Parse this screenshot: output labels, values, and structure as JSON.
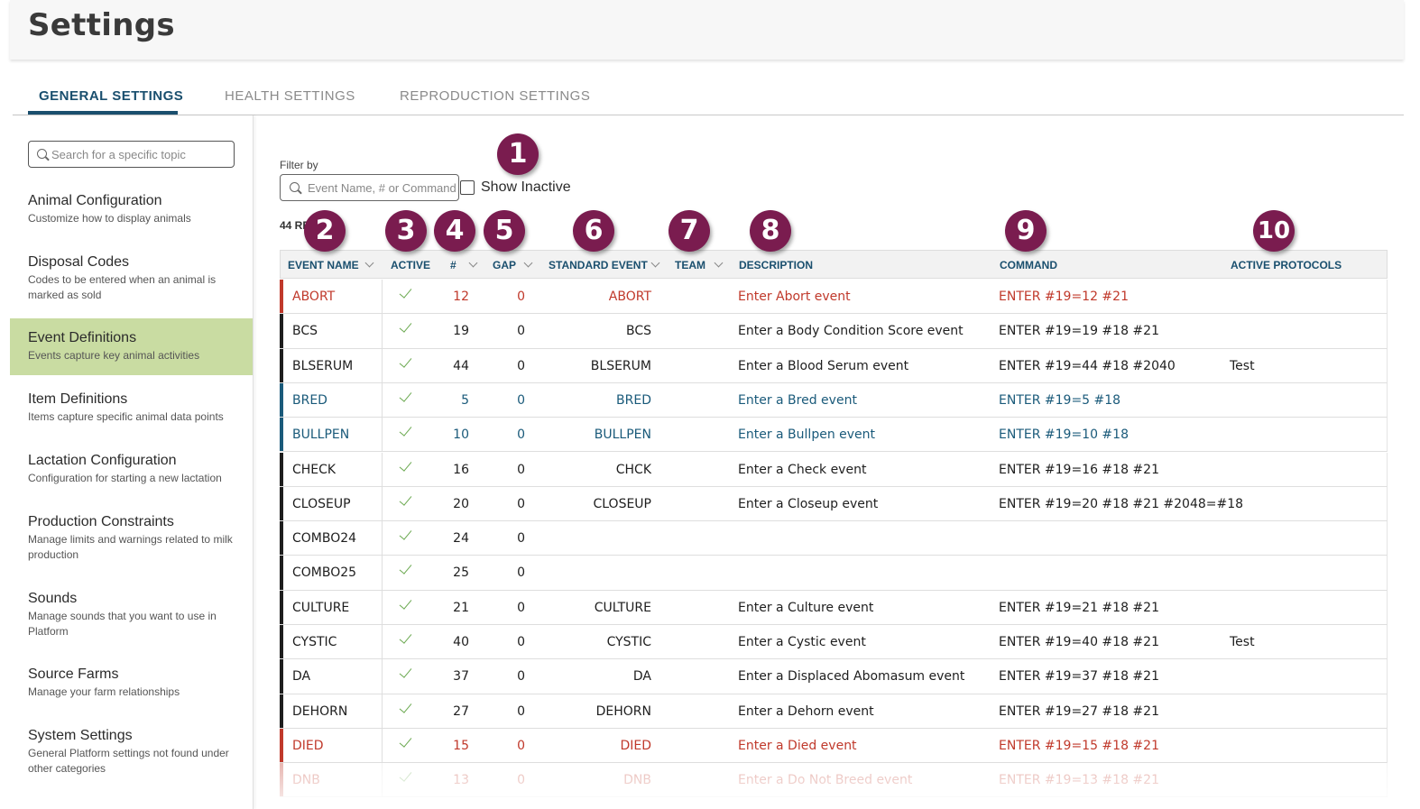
{
  "header": {
    "title": "Settings"
  },
  "tabs": [
    {
      "label": "GENERAL SETTINGS",
      "active": true
    },
    {
      "label": "HEALTH SETTINGS",
      "active": false
    },
    {
      "label": "REPRODUCTION SETTINGS",
      "active": false
    }
  ],
  "sidebar": {
    "search_placeholder": "Search for a specific topic",
    "items": [
      {
        "title": "Animal Configuration",
        "desc": "Customize how to display animals"
      },
      {
        "title": "Disposal Codes",
        "desc": "Codes to be entered when an animal is marked as sold"
      },
      {
        "title": "Event Definitions",
        "desc": "Events capture key animal activities",
        "active": true
      },
      {
        "title": "Item Definitions",
        "desc": "Items capture specific animal data points"
      },
      {
        "title": "Lactation Configuration",
        "desc": "Configuration for starting a new lactation"
      },
      {
        "title": "Production Constraints",
        "desc": "Manage limits and warnings related to milk production"
      },
      {
        "title": "Sounds",
        "desc": "Manage sounds that you want to use in Platform"
      },
      {
        "title": "Source Farms",
        "desc": "Manage your farm relationships"
      },
      {
        "title": "System Settings",
        "desc": "General Platform settings not found under other categories"
      }
    ]
  },
  "filter": {
    "label": "Filter by",
    "placeholder": "Event Name, # or Command",
    "show_inactive_label": "Show Inactive",
    "results_text": "44 RE"
  },
  "columns": {
    "event_name": "EVENT NAME",
    "active": "ACTIVE",
    "num": "#",
    "gap": "GAP",
    "standard_event": "STANDARD EVENT",
    "team": "TEAM",
    "description": "DESCRIPTION",
    "command": "COMMAND",
    "active_protocols": "ACTIVE PROTOCOLS"
  },
  "badges": [
    "1",
    "2",
    "3",
    "4",
    "5",
    "6",
    "7",
    "8",
    "9",
    "10"
  ],
  "colors": {
    "red": "#c0392b",
    "blue": "#1a5a7a",
    "black": "#1e1e1e",
    "badge": "#7a1c4f",
    "accent": "#1a4f6e",
    "active_bg": "#c9dca2",
    "check": "#6aa84f"
  },
  "rows": [
    {
      "name": "ABORT",
      "num": "12",
      "gap": "0",
      "std": "ABORT",
      "desc": "Enter Abort event",
      "cmd": "ENTER #19=12 #21",
      "prot": "",
      "color": "#c0392b"
    },
    {
      "name": "BCS",
      "num": "19",
      "gap": "0",
      "std": "BCS",
      "desc": "Enter a Body Condition Score event",
      "cmd": "ENTER #19=19 #18 #21",
      "prot": "",
      "color": "#1e1e1e"
    },
    {
      "name": "BLSERUM",
      "num": "44",
      "gap": "0",
      "std": "BLSERUM",
      "desc": "Enter a Blood Serum event",
      "cmd": "ENTER #19=44 #18 #2040",
      "prot": "Test",
      "color": "#1e1e1e"
    },
    {
      "name": "BRED",
      "num": "5",
      "gap": "0",
      "std": "BRED",
      "desc": "Enter a Bred event",
      "cmd": "ENTER #19=5 #18",
      "prot": "",
      "color": "#1a5a7a"
    },
    {
      "name": "BULLPEN",
      "num": "10",
      "gap": "0",
      "std": "BULLPEN",
      "desc": "Enter a Bullpen event",
      "cmd": "ENTER #19=10 #18",
      "prot": "",
      "color": "#1a5a7a"
    },
    {
      "name": "CHECK",
      "num": "16",
      "gap": "0",
      "std": "CHCK",
      "desc": "Enter a Check event",
      "cmd": "ENTER #19=16 #18 #21",
      "prot": "",
      "color": "#1e1e1e"
    },
    {
      "name": "CLOSEUP",
      "num": "20",
      "gap": "0",
      "std": "CLOSEUP",
      "desc": "Enter a Closeup event",
      "cmd": "ENTER #19=20 #18 #21 #2048=#18",
      "prot": "",
      "color": "#1e1e1e"
    },
    {
      "name": "COMBO24",
      "num": "24",
      "gap": "0",
      "std": "",
      "desc": "",
      "cmd": "",
      "prot": "",
      "color": "#1e1e1e"
    },
    {
      "name": "COMBO25",
      "num": "25",
      "gap": "0",
      "std": "",
      "desc": "",
      "cmd": "",
      "prot": "",
      "color": "#1e1e1e"
    },
    {
      "name": "CULTURE",
      "num": "21",
      "gap": "0",
      "std": "CULTURE",
      "desc": "Enter a Culture event",
      "cmd": "ENTER #19=21 #18 #21",
      "prot": "",
      "color": "#1e1e1e"
    },
    {
      "name": "CYSTIC",
      "num": "40",
      "gap": "0",
      "std": "CYSTIC",
      "desc": "Enter a Cystic event",
      "cmd": "ENTER #19=40 #18 #21",
      "prot": "Test",
      "color": "#1e1e1e"
    },
    {
      "name": "DA",
      "num": "37",
      "gap": "0",
      "std": "DA",
      "desc": "Enter a Displaced Abomasum event",
      "cmd": "ENTER #19=37 #18 #21",
      "prot": "",
      "color": "#1e1e1e"
    },
    {
      "name": "DEHORN",
      "num": "27",
      "gap": "0",
      "std": "DEHORN",
      "desc": "Enter a Dehorn event",
      "cmd": "ENTER #19=27 #18 #21",
      "prot": "",
      "color": "#1e1e1e"
    },
    {
      "name": "DIED",
      "num": "15",
      "gap": "0",
      "std": "DIED",
      "desc": "Enter a Died event",
      "cmd": "ENTER #19=15 #18 #21",
      "prot": "",
      "color": "#c0392b"
    },
    {
      "name": "DNB",
      "num": "13",
      "gap": "0",
      "std": "DNB",
      "desc": "Enter a Do Not Breed event",
      "cmd": "ENTER #19=13 #18 #21",
      "prot": "",
      "color": "#c0392b"
    }
  ]
}
